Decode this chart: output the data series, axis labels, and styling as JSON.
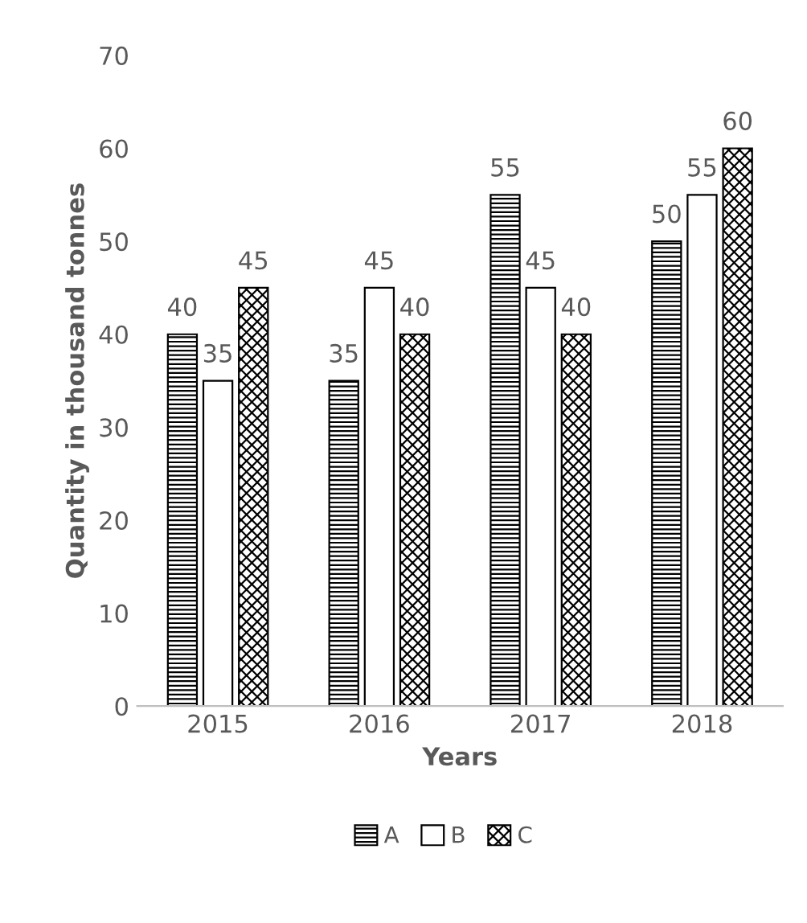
{
  "chart_data": {
    "type": "bar",
    "xlabel": "Years",
    "ylabel": "Quantity in thousand tonnes",
    "categories": [
      "2015",
      "2016",
      "2017",
      "2018"
    ],
    "series": [
      {
        "name": "A",
        "color": "#000000",
        "values": [
          40,
          35,
          55,
          50
        ]
      },
      {
        "name": "B",
        "color": "#ffffff",
        "values": [
          35,
          45,
          45,
          55
        ]
      },
      {
        "name": "C",
        "color": "#000000",
        "values": [
          45,
          40,
          40,
          60
        ]
      }
    ],
    "ylim": [
      0,
      70
    ],
    "yticks": [
      0,
      10,
      20,
      30,
      40,
      50,
      60,
      70
    ],
    "grid": false,
    "legend": "bottom",
    "data_labels": true
  }
}
